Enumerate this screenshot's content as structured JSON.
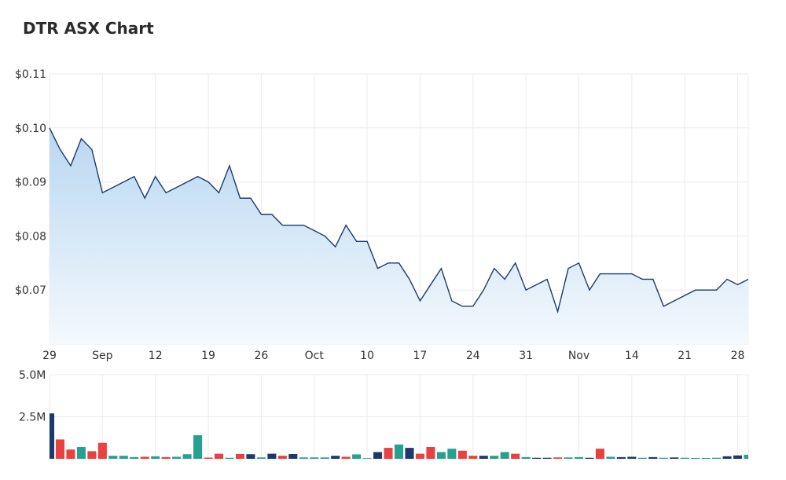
{
  "title": "DTR ASX Chart",
  "colors": {
    "line": "#1b3a6b",
    "area_top": "#b9d7f1",
    "area_bottom": "#f4f9fd",
    "vol_navy": "#1b3a6b",
    "vol_red": "#e8413f",
    "vol_teal": "#27a08f",
    "grid": "#ebebeb"
  },
  "chart_data": [
    {
      "type": "area",
      "title": "DTR ASX Chart",
      "y_tick_labels": [
        "$0.07",
        "$0.08",
        "$0.09",
        "$0.10",
        "$0.11"
      ],
      "y_ticks": [
        0.07,
        0.08,
        0.09,
        0.1,
        0.11
      ],
      "ylim": [
        0.06,
        0.11
      ],
      "x_tick_labels": [
        "29",
        "Sep",
        "12",
        "19",
        "26",
        "Oct",
        "10",
        "17",
        "24",
        "31",
        "Nov",
        "14",
        "21",
        "28"
      ],
      "x_tick_dates": [
        "Aug 29",
        "Sep 5",
        "Sep 12",
        "Sep 19",
        "Sep 26",
        "Oct 3",
        "Oct 10",
        "Oct 17",
        "Oct 24",
        "Oct 31",
        "Nov 7",
        "Nov 14",
        "Nov 21",
        "Nov 28"
      ],
      "x": [
        "Aug 29",
        "Aug 30",
        "Aug 31",
        "Sep 1",
        "Sep 2",
        "Sep 5",
        "Sep 6",
        "Sep 7",
        "Sep 8",
        "Sep 9",
        "Sep 12",
        "Sep 13",
        "Sep 14",
        "Sep 15",
        "Sep 16",
        "Sep 19",
        "Sep 20",
        "Sep 21",
        "Sep 22",
        "Sep 23",
        "Sep 26",
        "Sep 27",
        "Sep 28",
        "Sep 29",
        "Sep 30",
        "Oct 3",
        "Oct 4",
        "Oct 5",
        "Oct 6",
        "Oct 7",
        "Oct 10",
        "Oct 11",
        "Oct 12",
        "Oct 13",
        "Oct 14",
        "Oct 17",
        "Oct 18",
        "Oct 19",
        "Oct 20",
        "Oct 21",
        "Oct 24",
        "Oct 25",
        "Oct 26",
        "Oct 27",
        "Oct 28",
        "Oct 31",
        "Nov 1",
        "Nov 2",
        "Nov 3",
        "Nov 4",
        "Nov 7",
        "Nov 8",
        "Nov 9",
        "Nov 10",
        "Nov 11",
        "Nov 14",
        "Nov 15",
        "Nov 16",
        "Nov 17",
        "Nov 18",
        "Nov 21",
        "Nov 22",
        "Nov 23",
        "Nov 24",
        "Nov 25",
        "Nov 28",
        "Nov 29"
      ],
      "values": [
        0.1,
        0.096,
        0.093,
        0.098,
        0.096,
        0.088,
        0.089,
        0.09,
        0.091,
        0.087,
        0.091,
        0.088,
        0.089,
        0.09,
        0.091,
        0.09,
        0.088,
        0.093,
        0.087,
        0.087,
        0.084,
        0.084,
        0.082,
        0.082,
        0.082,
        0.081,
        0.08,
        0.078,
        0.082,
        0.079,
        0.079,
        0.074,
        0.075,
        0.075,
        0.072,
        0.068,
        0.071,
        0.074,
        0.068,
        0.067,
        0.067,
        0.07,
        0.074,
        0.072,
        0.075,
        0.07,
        0.071,
        0.072,
        0.066,
        0.074,
        0.075,
        0.07,
        0.073,
        0.073,
        0.073,
        0.073,
        0.072,
        0.072,
        0.067,
        0.068,
        0.069,
        0.07,
        0.07,
        0.07,
        0.072,
        0.071,
        0.072
      ],
      "grid": true
    },
    {
      "type": "bar",
      "title": "",
      "y_tick_labels": [
        "2.5M",
        "5.0M"
      ],
      "y_ticks": [
        2500000,
        5000000
      ],
      "ylim": [
        0,
        5000000
      ],
      "x": [
        "Aug 29",
        "Aug 30",
        "Aug 31",
        "Sep 1",
        "Sep 2",
        "Sep 5",
        "Sep 6",
        "Sep 7",
        "Sep 8",
        "Sep 9",
        "Sep 12",
        "Sep 13",
        "Sep 14",
        "Sep 15",
        "Sep 16",
        "Sep 19",
        "Sep 20",
        "Sep 21",
        "Sep 22",
        "Sep 23",
        "Sep 26",
        "Sep 27",
        "Sep 28",
        "Sep 29",
        "Sep 30",
        "Oct 3",
        "Oct 4",
        "Oct 5",
        "Oct 6",
        "Oct 7",
        "Oct 10",
        "Oct 11",
        "Oct 12",
        "Oct 13",
        "Oct 14",
        "Oct 17",
        "Oct 18",
        "Oct 19",
        "Oct 20",
        "Oct 21",
        "Oct 24",
        "Oct 25",
        "Oct 26",
        "Oct 27",
        "Oct 28",
        "Oct 31",
        "Nov 1",
        "Nov 2",
        "Nov 3",
        "Nov 4",
        "Nov 7",
        "Nov 8",
        "Nov 9",
        "Nov 10",
        "Nov 11",
        "Nov 14",
        "Nov 15",
        "Nov 16",
        "Nov 17",
        "Nov 18",
        "Nov 21",
        "Nov 22",
        "Nov 23",
        "Nov 24",
        "Nov 25",
        "Nov 28",
        "Nov 29"
      ],
      "values": [
        2700000,
        1150000,
        550000,
        700000,
        450000,
        950000,
        180000,
        180000,
        100000,
        120000,
        150000,
        100000,
        120000,
        270000,
        1400000,
        70000,
        300000,
        60000,
        280000,
        270000,
        80000,
        300000,
        180000,
        280000,
        80000,
        80000,
        80000,
        180000,
        120000,
        260000,
        40000,
        400000,
        650000,
        850000,
        650000,
        300000,
        700000,
        400000,
        600000,
        480000,
        180000,
        180000,
        180000,
        400000,
        300000,
        100000,
        60000,
        60000,
        80000,
        80000,
        100000,
        60000,
        600000,
        120000,
        100000,
        120000,
        60000,
        100000,
        60000,
        80000,
        60000,
        50000,
        50000,
        60000,
        150000,
        200000,
        240000
      ],
      "colors": [
        "navy",
        "red",
        "red",
        "teal",
        "red",
        "red",
        "teal",
        "teal",
        "teal",
        "red",
        "teal",
        "red",
        "teal",
        "teal",
        "teal",
        "red",
        "red",
        "teal",
        "red",
        "navy",
        "teal",
        "navy",
        "red",
        "navy",
        "teal",
        "teal",
        "teal",
        "navy",
        "red",
        "teal",
        "teal",
        "navy",
        "red",
        "teal",
        "navy",
        "red",
        "red",
        "teal",
        "teal",
        "red",
        "red",
        "navy",
        "teal",
        "teal",
        "red",
        "teal",
        "navy",
        "navy",
        "red",
        "teal",
        "teal",
        "navy",
        "red",
        "teal",
        "navy",
        "navy",
        "teal",
        "navy",
        "teal",
        "navy",
        "teal",
        "teal",
        "teal",
        "teal",
        "navy",
        "navy",
        "teal"
      ],
      "grid": true
    }
  ]
}
